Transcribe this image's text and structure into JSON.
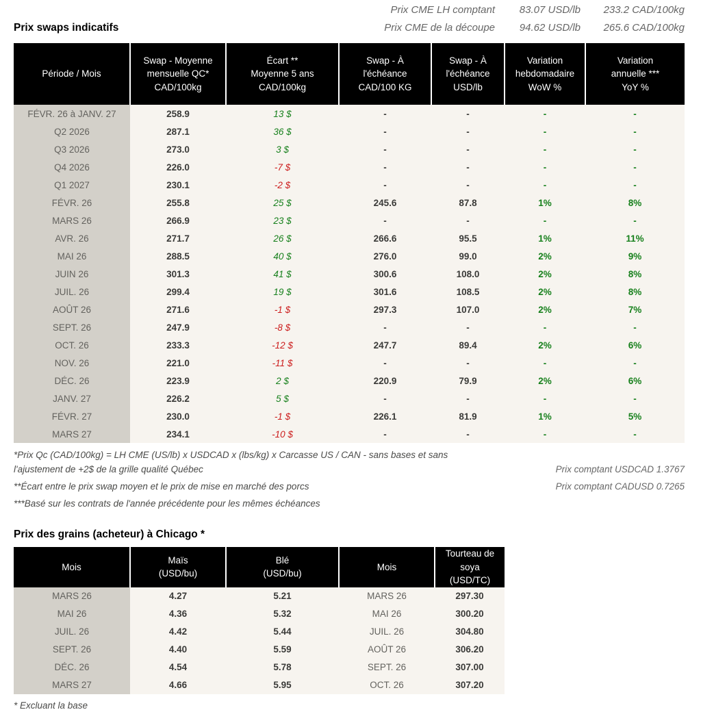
{
  "topbar": {
    "lines": [
      {
        "label": "Prix CME LH comptant",
        "usd": "83.07 USD/lb",
        "cad": "233.2 CAD/100kg"
      },
      {
        "label": "Prix CME de la découpe",
        "usd": "94.62 USD/lb",
        "cad": "265.6 CAD/100kg"
      }
    ]
  },
  "swaps": {
    "title": "Prix swaps indicatifs",
    "columns": [
      "Période / Mois",
      "Swap - Moyenne\nmensuelle QC*\nCAD/100kg",
      "Écart **\nMoyenne 5 ans\nCAD/100kg",
      "Swap - À\nl'échéance\nCAD/100 KG",
      "Swap - À\nl'échéance\nUSD/lb",
      "Variation\nhebdomadaire\nWoW %",
      "Variation\nannuelle ***\nYoY %"
    ],
    "rows": [
      {
        "period": "FÉVR. 26 à  JANV. 27",
        "avg": "258.9",
        "ecart": "13 $",
        "swap_cad": "-",
        "swap_usd": "-",
        "wow": "-",
        "yoy": "-"
      },
      {
        "period": "Q2 2026",
        "avg": "287.1",
        "ecart": "36 $",
        "swap_cad": "-",
        "swap_usd": "-",
        "wow": "-",
        "yoy": "-"
      },
      {
        "period": "Q3 2026",
        "avg": "273.0",
        "ecart": "3 $",
        "swap_cad": "-",
        "swap_usd": "-",
        "wow": "-",
        "yoy": "-"
      },
      {
        "period": "Q4 2026",
        "avg": "226.0",
        "ecart": "-7 $",
        "swap_cad": "-",
        "swap_usd": "-",
        "wow": "-",
        "yoy": "-"
      },
      {
        "period": "Q1 2027",
        "avg": "230.1",
        "ecart": "-2 $",
        "swap_cad": "-",
        "swap_usd": "-",
        "wow": "-",
        "yoy": "-"
      },
      {
        "period": "FÉVR. 26",
        "avg": "255.8",
        "ecart": "25 $",
        "swap_cad": "245.6",
        "swap_usd": "87.8",
        "wow": "1%",
        "yoy": "8%"
      },
      {
        "period": "MARS 26",
        "avg": "266.9",
        "ecart": "23 $",
        "swap_cad": "-",
        "swap_usd": "-",
        "wow": "-",
        "yoy": "-"
      },
      {
        "period": "AVR. 26",
        "avg": "271.7",
        "ecart": "26 $",
        "swap_cad": "266.6",
        "swap_usd": "95.5",
        "wow": "1%",
        "yoy": "11%"
      },
      {
        "period": "MAI 26",
        "avg": "288.5",
        "ecart": "40 $",
        "swap_cad": "276.0",
        "swap_usd": "99.0",
        "wow": "2%",
        "yoy": "9%"
      },
      {
        "period": "JUIN 26",
        "avg": "301.3",
        "ecart": "41 $",
        "swap_cad": "300.6",
        "swap_usd": "108.0",
        "wow": "2%",
        "yoy": "8%"
      },
      {
        "period": "JUIL. 26",
        "avg": "299.4",
        "ecart": "19 $",
        "swap_cad": "301.6",
        "swap_usd": "108.5",
        "wow": "2%",
        "yoy": "8%"
      },
      {
        "period": "AOÛT 26",
        "avg": "271.6",
        "ecart": "-1 $",
        "swap_cad": "297.3",
        "swap_usd": "107.0",
        "wow": "2%",
        "yoy": "7%"
      },
      {
        "period": "SEPT. 26",
        "avg": "247.9",
        "ecart": "-8 $",
        "swap_cad": "-",
        "swap_usd": "-",
        "wow": "-",
        "yoy": "-"
      },
      {
        "period": "OCT. 26",
        "avg": "233.3",
        "ecart": "-12 $",
        "swap_cad": "247.7",
        "swap_usd": "89.4",
        "wow": "2%",
        "yoy": "6%"
      },
      {
        "period": "NOV. 26",
        "avg": "221.0",
        "ecart": "-11 $",
        "swap_cad": "-",
        "swap_usd": "-",
        "wow": "-",
        "yoy": "-"
      },
      {
        "period": "DÉC. 26",
        "avg": "223.9",
        "ecart": "2 $",
        "swap_cad": "220.9",
        "swap_usd": "79.9",
        "wow": "2%",
        "yoy": "6%"
      },
      {
        "period": "JANV. 27",
        "avg": "226.2",
        "ecart": "5 $",
        "swap_cad": "-",
        "swap_usd": "-",
        "wow": "-",
        "yoy": "-"
      },
      {
        "period": "FÉVR. 27",
        "avg": "230.0",
        "ecart": "-1 $",
        "swap_cad": "226.1",
        "swap_usd": "81.9",
        "wow": "1%",
        "yoy": "5%"
      },
      {
        "period": "MARS 27",
        "avg": "234.1",
        "ecart": "-10 $",
        "swap_cad": "-",
        "swap_usd": "-",
        "wow": "-",
        "yoy": "-"
      }
    ],
    "footnotes_left": [
      "*Prix Qc (CAD/100kg) = LH CME (US/lb) x USDCAD x (lbs/kg) x Carcasse US / CAN - sans bases et sans l'ajustement de +2$ de la grille qualité Québec",
      "**Écart entre le prix swap moyen et le prix de mise en marché des porcs",
      "***Basé sur les contrats de l'année précédente pour les mêmes échéances"
    ],
    "footnotes_right": [
      "Prix comptant USDCAD 1.3767",
      "Prix comptant CADUSD 0.7265"
    ]
  },
  "grains": {
    "title": "Prix des grains (acheteur) à Chicago *",
    "columns": [
      "Mois",
      "Maïs\n(USD/bu)",
      "Blé\n(USD/bu)",
      "Mois",
      "Tourteau de\nsoya\n(USD/TC)"
    ],
    "rows": [
      {
        "mois1": "MARS 26",
        "mais": "4.27",
        "ble": "5.21",
        "mois2": "MARS 26",
        "tourteau": "297.30"
      },
      {
        "mois1": "MAI 26",
        "mais": "4.36",
        "ble": "5.32",
        "mois2": "MAI 26",
        "tourteau": "300.20"
      },
      {
        "mois1": "JUIL. 26",
        "mais": "4.42",
        "ble": "5.44",
        "mois2": "JUIL. 26",
        "tourteau": "304.80"
      },
      {
        "mois1": "SEPT. 26",
        "mais": "4.40",
        "ble": "5.59",
        "mois2": "AOÛT 26",
        "tourteau": "306.20"
      },
      {
        "mois1": "DÉC. 26",
        "mais": "4.54",
        "ble": "5.78",
        "mois2": "SEPT. 26",
        "tourteau": "307.00"
      },
      {
        "mois1": "MARS 27",
        "mais": "4.66",
        "ble": "5.95",
        "mois2": "OCT. 26",
        "tourteau": "307.20"
      }
    ],
    "footnote": "* Excluant la base"
  },
  "colors": {
    "header_bg": "#000000",
    "header_text": "#ffffff",
    "period_col_bg": "#d3d0c9",
    "data_bg": "#f7f4ef",
    "positive_green": "#17801c",
    "negative_red": "#cc1d1d",
    "muted_gray": "#666666"
  }
}
